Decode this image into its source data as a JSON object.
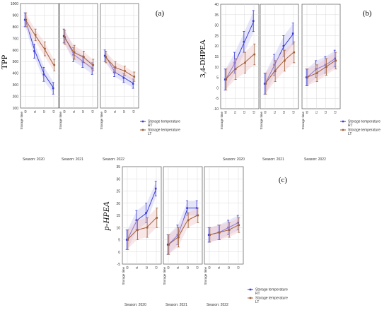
{
  "colors": {
    "rt": "#3b3bd9",
    "lt": "#a0603a",
    "rt_band": "#c8c8f4",
    "lt_band": "#f2c8c8",
    "grid": "#d9d9d9"
  },
  "chart_data": [
    {
      "type": "line",
      "panel_label": "(a)",
      "ylabel": "TPP",
      "ylim": [
        100,
        1000
      ],
      "yticks": [
        "100",
        "200",
        "300",
        "400",
        "500",
        "600",
        "700",
        "800",
        "900",
        "1000"
      ],
      "xlabel": "Storage time",
      "x": [
        "t0",
        "t1",
        "t2",
        "t3"
      ],
      "legend": [
        "Storage temperature RT",
        "Storage temperature LT"
      ],
      "facets": [
        {
          "label": "Season: 2020",
          "series": [
            {
              "name": "RT",
              "values": [
                860,
                590,
                390,
                270
              ],
              "err": [
                60,
                60,
                60,
                50
              ]
            },
            {
              "name": "LT",
              "values": [
                860,
                730,
                610,
                470
              ],
              "err": [
                60,
                50,
                60,
                50
              ]
            }
          ]
        },
        {
          "label": "Season: 2021",
          "series": [
            {
              "name": "RT",
              "values": [
                720,
                560,
                500,
                440
              ],
              "err": [
                60,
                60,
                50,
                50
              ]
            },
            {
              "name": "LT",
              "values": [
                710,
                580,
                540,
                470
              ],
              "err": [
                60,
                60,
                50,
                50
              ]
            }
          ]
        },
        {
          "label": "Season: 2022",
          "series": [
            {
              "name": "RT",
              "values": [
                550,
                410,
                360,
                310
              ],
              "err": [
                50,
                40,
                40,
                40
              ]
            },
            {
              "name": "LT",
              "values": [
                540,
                450,
                420,
                370
              ],
              "err": [
                50,
                50,
                40,
                40
              ]
            }
          ]
        }
      ]
    },
    {
      "type": "line",
      "panel_label": "(b)",
      "ylabel": "3,4-DHPEA",
      "ylim": [
        -10,
        40
      ],
      "yticks": [
        "-10",
        "-5",
        "0",
        "5",
        "10",
        "15",
        "20",
        "25",
        "30",
        "35",
        "40"
      ],
      "xlabel": "Storage time",
      "x": [
        "t0",
        "t1",
        "t2",
        "t3"
      ],
      "legend": [
        "Storage temperature RT",
        "Storage temperature LT"
      ],
      "facets": [
        {
          "label": "Season: 2020",
          "series": [
            {
              "name": "RT",
              "values": [
                4,
                12,
                22,
                32
              ],
              "err": [
                5,
                5,
                5,
                5
              ]
            },
            {
              "name": "LT",
              "values": [
                4,
                9,
                12,
                16
              ],
              "err": [
                5,
                5,
                5,
                5
              ]
            }
          ]
        },
        {
          "label": "Season: 2021",
          "series": [
            {
              "name": "RT",
              "values": [
                2,
                11,
                20,
                26
              ],
              "err": [
                5,
                5,
                5,
                5
              ]
            },
            {
              "name": "LT",
              "values": [
                2,
                8,
                13,
                17
              ],
              "err": [
                5,
                5,
                5,
                5
              ]
            }
          ]
        },
        {
          "label": "Season: 2022",
          "series": [
            {
              "name": "RT",
              "values": [
                5,
                9,
                11,
                14
              ],
              "err": [
                4,
                4,
                4,
                4
              ]
            },
            {
              "name": "LT",
              "values": [
                5,
                7,
                10,
                13
              ],
              "err": [
                4,
                4,
                4,
                4
              ]
            }
          ]
        }
      ]
    },
    {
      "type": "line",
      "panel_label": "(c)",
      "ylabel": "p-HPEA",
      "ylim": [
        -5,
        35
      ],
      "yticks": [
        "-5",
        "0",
        "5",
        "10",
        "15",
        "20",
        "25",
        "30",
        "35"
      ],
      "xlabel": "Storage time",
      "x": [
        "t0",
        "t1",
        "t2",
        "t3"
      ],
      "legend": [
        "Storage temperature RT",
        "Storage temperature LT"
      ],
      "facets": [
        {
          "label": "Season: 2020",
          "series": [
            {
              "name": "RT",
              "values": [
                5,
                13,
                16,
                26
              ],
              "err": [
                4,
                4,
                4,
                3
              ]
            },
            {
              "name": "LT",
              "values": [
                5,
                9,
                10,
                14
              ],
              "err": [
                4,
                4,
                4,
                4
              ]
            }
          ]
        },
        {
          "label": "Season: 2021",
          "series": [
            {
              "name": "RT",
              "values": [
                3,
                7,
                18,
                18
              ],
              "err": [
                4,
                4,
                3,
                3
              ]
            },
            {
              "name": "LT",
              "values": [
                3,
                6,
                13,
                15
              ],
              "err": [
                4,
                4,
                3,
                3
              ]
            }
          ]
        },
        {
          "label": "Season: 2022",
          "series": [
            {
              "name": "RT",
              "values": [
                7,
                8,
                10,
                12
              ],
              "err": [
                3,
                3,
                3,
                3
              ]
            },
            {
              "name": "LT",
              "values": [
                7,
                8,
                9,
                11
              ],
              "err": [
                3,
                3,
                3,
                3
              ]
            }
          ]
        }
      ]
    }
  ]
}
